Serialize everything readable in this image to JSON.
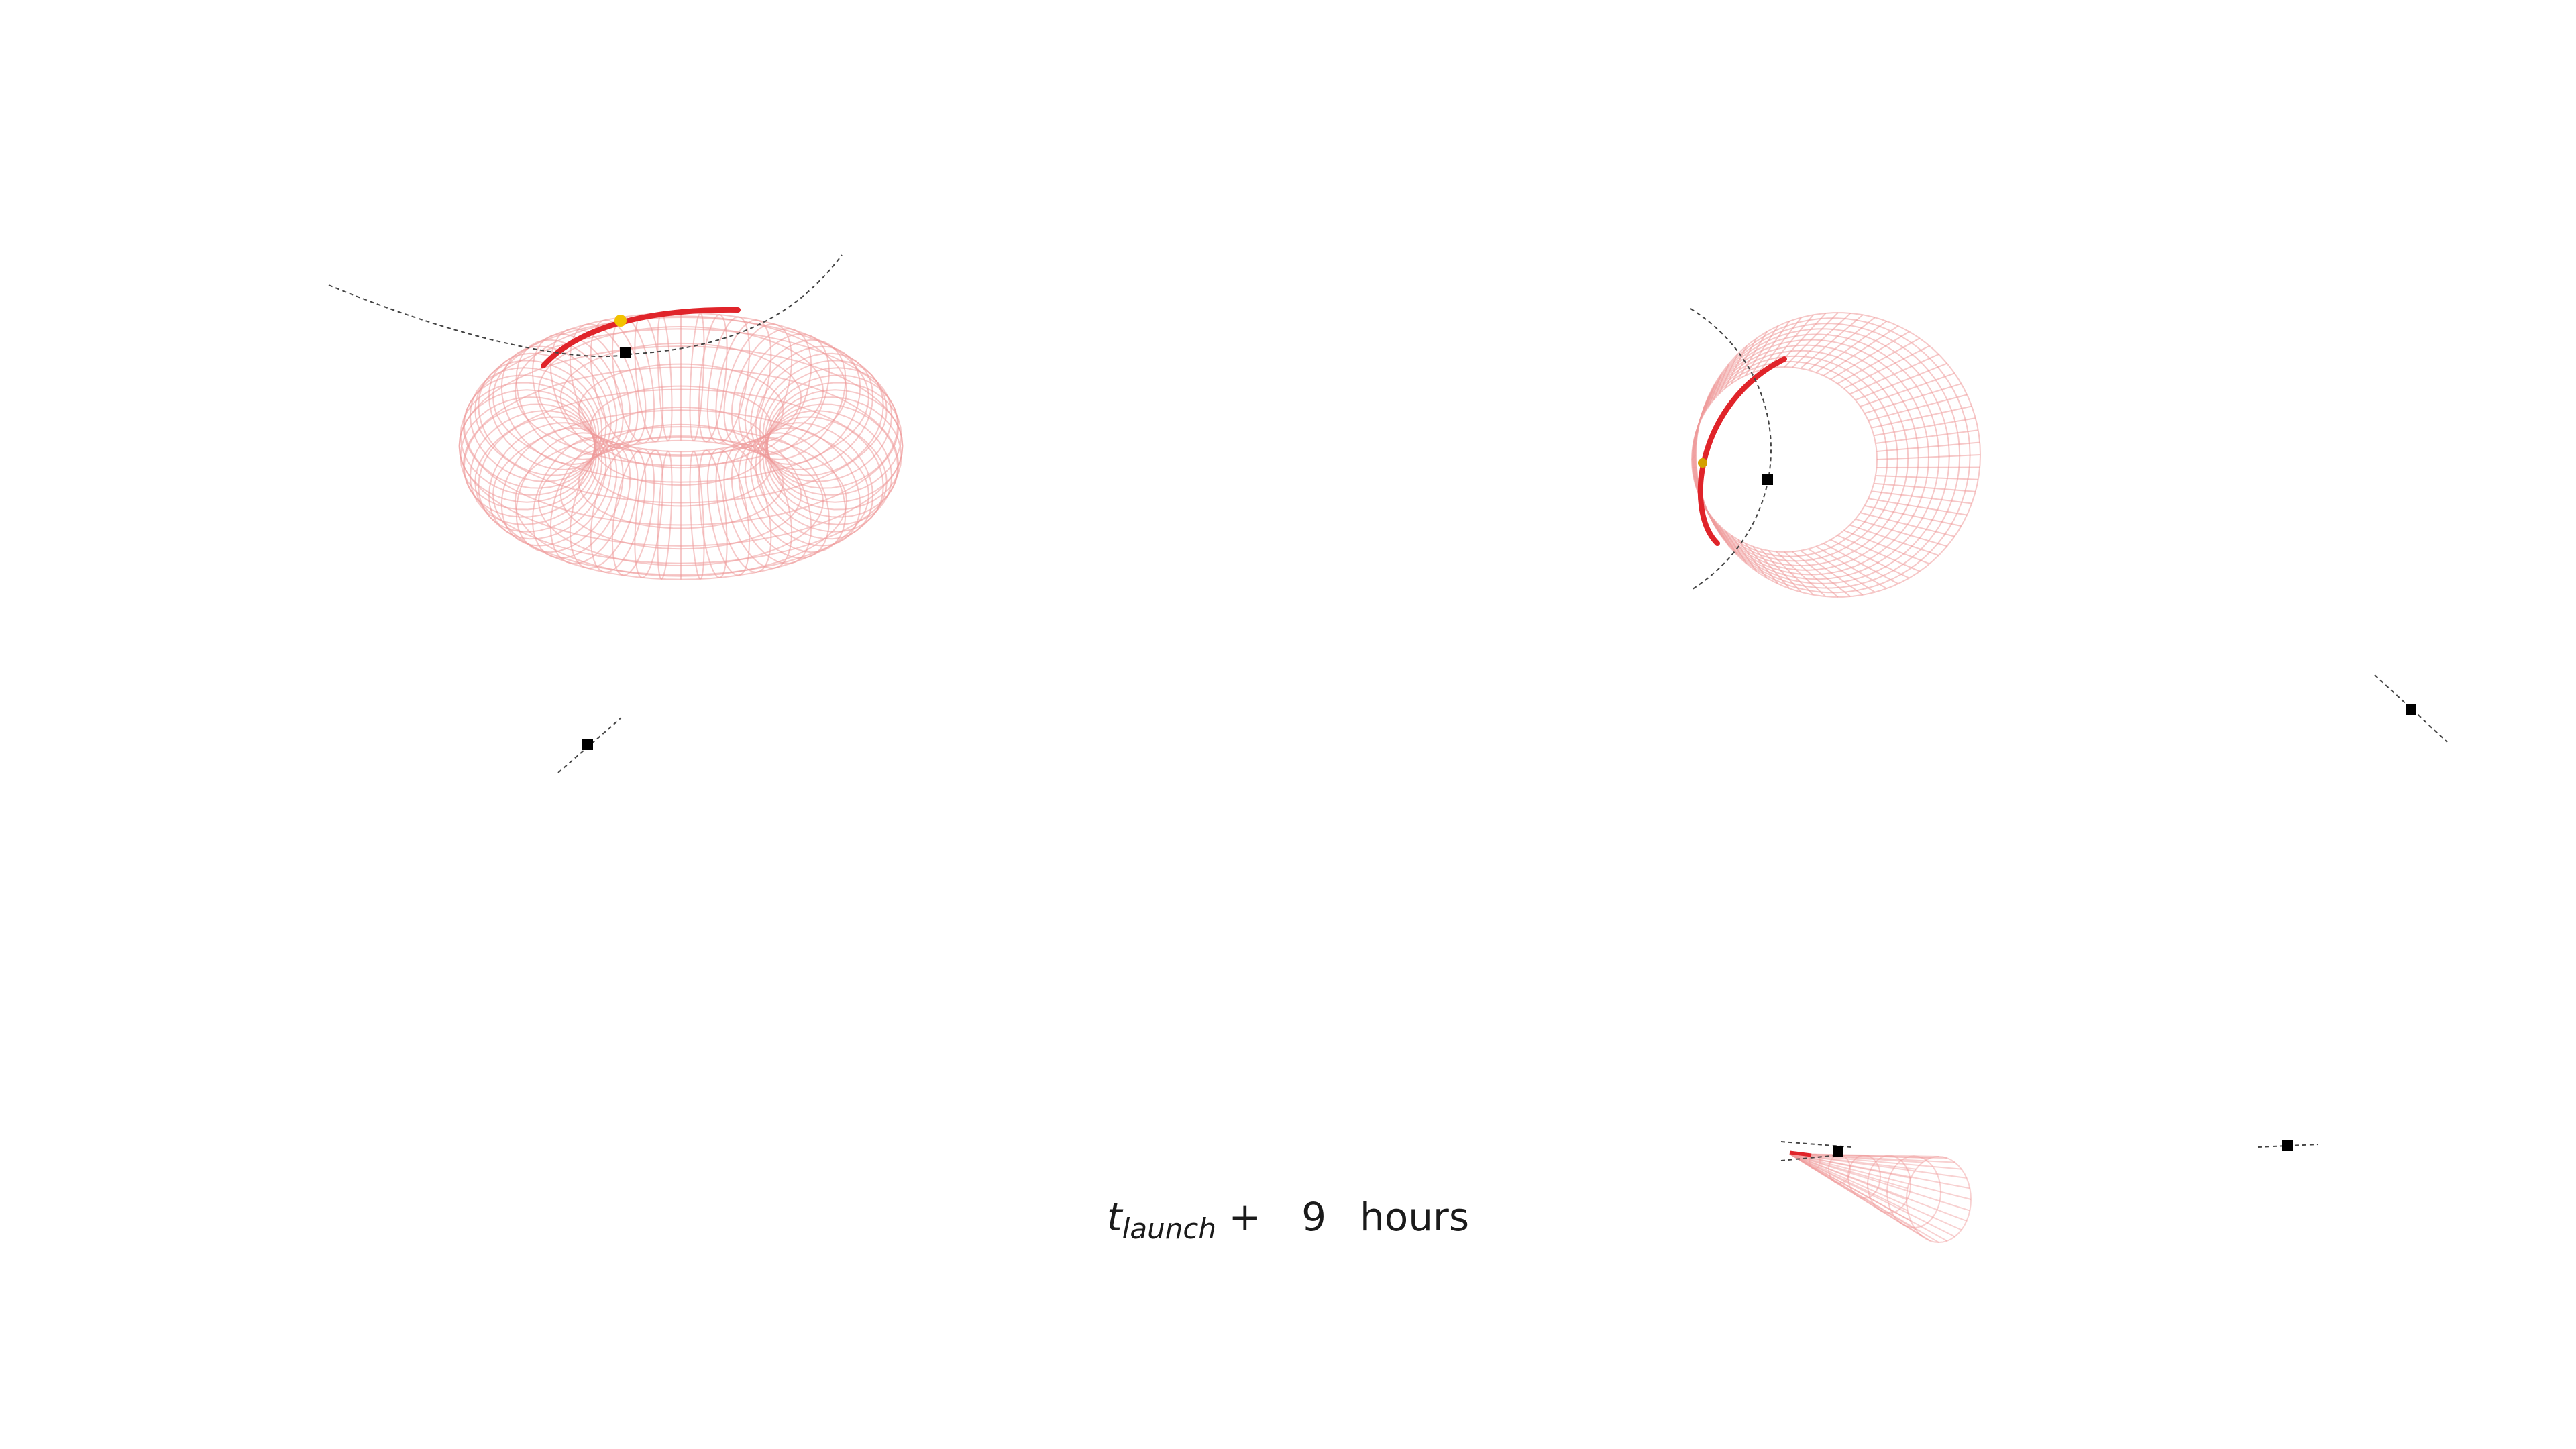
{
  "caption": {
    "symbol": "t",
    "subscript": "launch",
    "plus": "+",
    "value": "9",
    "unit": "hours"
  },
  "colors": {
    "torus_mesh": "#ef9a9a",
    "highlight_arc": "#e0242a",
    "marker": "#000000",
    "trajectory": "#444444",
    "probe": "#f2c200"
  }
}
